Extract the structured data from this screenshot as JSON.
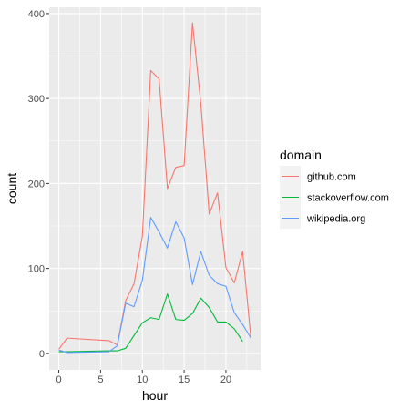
{
  "chart_data": {
    "type": "line",
    "title": "",
    "xlabel": "hour",
    "ylabel": "count",
    "xlim": [
      -1.15,
      24.15
    ],
    "ylim": [
      -19.4,
      407.4
    ],
    "x_ticks": [
      0,
      5,
      10,
      15,
      20
    ],
    "x_minor_ticks": [
      2.5,
      7.5,
      12.5,
      17.5,
      22.5
    ],
    "y_ticks": [
      0,
      100,
      200,
      300,
      400
    ],
    "y_minor_ticks": [
      50,
      150,
      250,
      350
    ],
    "grid": true,
    "legend": {
      "title": "domain",
      "position": "right"
    },
    "series": [
      {
        "name": "github.com",
        "color": "#F8766D",
        "x": [
          0,
          1,
          6,
          7,
          8,
          9,
          10,
          11,
          12,
          13,
          14,
          15,
          16,
          17,
          18,
          19,
          20,
          21,
          22,
          23
        ],
        "y": [
          5,
          18,
          15,
          10,
          62,
          82,
          138,
          333,
          323,
          194,
          219,
          221,
          389,
          294,
          164,
          189,
          101,
          83,
          120,
          17
        ]
      },
      {
        "name": "stackoverflow.com",
        "color": "#00BA38",
        "x": [
          0,
          1,
          6,
          7,
          8,
          9,
          10,
          11,
          12,
          13,
          14,
          15,
          16,
          17,
          18,
          19,
          20,
          21,
          22
        ],
        "y": [
          2,
          2,
          3,
          3,
          6,
          21,
          36,
          42,
          40,
          70,
          40,
          39,
          47,
          65,
          54,
          37,
          37,
          29,
          14
        ]
      },
      {
        "name": "wikipedia.org",
        "color": "#619CFF",
        "x": [
          0,
          1,
          6,
          7,
          8,
          9,
          10,
          11,
          12,
          13,
          14,
          15,
          16,
          17,
          18,
          19,
          20,
          21,
          22,
          23
        ],
        "y": [
          4,
          1,
          2,
          9,
          59,
          55,
          86,
          160,
          143,
          124,
          155,
          136,
          81,
          120,
          92,
          82,
          79,
          48,
          34,
          18
        ]
      }
    ]
  }
}
